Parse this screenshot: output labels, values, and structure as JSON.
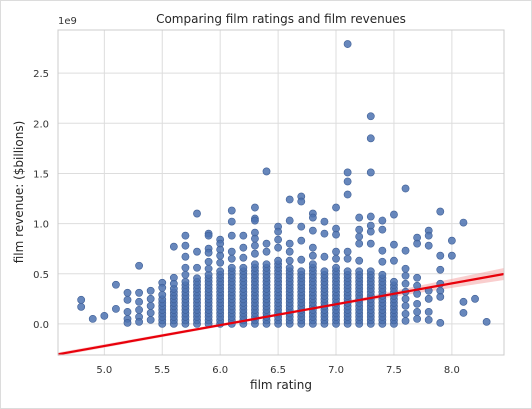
{
  "chart_data": {
    "type": "scatter",
    "title": "Comparing film ratings and film revenues",
    "xlabel": "film rating",
    "ylabel": "film revenue: ($billions)",
    "y_offset_text": "1e9",
    "xlim": [
      4.6,
      8.45
    ],
    "ylim": [
      -0.31,
      2.93
    ],
    "x_ticks": [
      5.0,
      5.5,
      6.0,
      6.5,
      7.0,
      7.5,
      8.0
    ],
    "x_tick_labels": [
      "5.0",
      "5.5",
      "6.0",
      "6.5",
      "7.0",
      "7.5",
      "8.0"
    ],
    "y_ticks": [
      0.0,
      0.5,
      1.0,
      1.5,
      2.0,
      2.5
    ],
    "y_tick_labels": [
      "0.0",
      "0.5",
      "1.0",
      "1.5",
      "2.0",
      "2.5"
    ],
    "grid": true,
    "point_color": "#4c72b0",
    "regression_color": "#e8000b",
    "regression_band_color": "#f4a6a6",
    "regression": {
      "intercept": -1.26,
      "slope": 0.208,
      "x_range": [
        4.6,
        8.45
      ]
    },
    "points": [
      {
        "x": 4.8,
        "y": 0.24
      },
      {
        "x": 4.8,
        "y": 0.17
      },
      {
        "x": 4.9,
        "y": 0.05
      },
      {
        "x": 5.0,
        "y": 0.08
      },
      {
        "x": 5.1,
        "y": 0.39
      },
      {
        "x": 5.1,
        "y": 0.15
      },
      {
        "x": 5.2,
        "y": 0.31
      },
      {
        "x": 5.2,
        "y": 0.24
      },
      {
        "x": 5.2,
        "y": 0.12
      },
      {
        "x": 5.2,
        "y": 0.05
      },
      {
        "x": 5.2,
        "y": 0.01
      },
      {
        "x": 5.3,
        "y": 0.58
      },
      {
        "x": 5.3,
        "y": 0.31
      },
      {
        "x": 5.3,
        "y": 0.22
      },
      {
        "x": 5.3,
        "y": 0.14
      },
      {
        "x": 5.3,
        "y": 0.07
      },
      {
        "x": 5.3,
        "y": 0.02
      },
      {
        "x": 5.4,
        "y": 0.33
      },
      {
        "x": 5.4,
        "y": 0.25
      },
      {
        "x": 5.4,
        "y": 0.18
      },
      {
        "x": 5.4,
        "y": 0.11
      },
      {
        "x": 5.4,
        "y": 0.04
      },
      {
        "x": 5.5,
        "y": 0.41
      },
      {
        "x": 5.5,
        "y": 0.36
      },
      {
        "x": 5.5,
        "y": 0.29
      },
      {
        "x": 5.6,
        "y": 0.77
      },
      {
        "x": 5.6,
        "y": 0.46
      },
      {
        "x": 5.6,
        "y": 0.4
      },
      {
        "x": 5.7,
        "y": 0.88
      },
      {
        "x": 5.7,
        "y": 0.78
      },
      {
        "x": 5.7,
        "y": 0.67
      },
      {
        "x": 5.7,
        "y": 0.56
      },
      {
        "x": 5.7,
        "y": 0.49
      },
      {
        "x": 5.8,
        "y": 1.1
      },
      {
        "x": 5.8,
        "y": 0.72
      },
      {
        "x": 5.8,
        "y": 0.56
      },
      {
        "x": 5.9,
        "y": 0.9
      },
      {
        "x": 5.9,
        "y": 0.88
      },
      {
        "x": 5.9,
        "y": 0.75
      },
      {
        "x": 5.9,
        "y": 0.71
      },
      {
        "x": 5.9,
        "y": 0.62
      },
      {
        "x": 5.9,
        "y": 0.55
      },
      {
        "x": 6.0,
        "y": 0.84
      },
      {
        "x": 6.0,
        "y": 0.8
      },
      {
        "x": 6.0,
        "y": 0.74
      },
      {
        "x": 6.0,
        "y": 0.68
      },
      {
        "x": 6.0,
        "y": 0.61
      },
      {
        "x": 6.1,
        "y": 1.13
      },
      {
        "x": 6.1,
        "y": 1.02
      },
      {
        "x": 6.1,
        "y": 0.88
      },
      {
        "x": 6.1,
        "y": 0.72
      },
      {
        "x": 6.1,
        "y": 0.65
      },
      {
        "x": 6.2,
        "y": 0.88
      },
      {
        "x": 6.2,
        "y": 0.76
      },
      {
        "x": 6.2,
        "y": 0.66
      },
      {
        "x": 6.3,
        "y": 1.16
      },
      {
        "x": 6.3,
        "y": 1.05
      },
      {
        "x": 6.3,
        "y": 1.03
      },
      {
        "x": 6.3,
        "y": 0.91
      },
      {
        "x": 6.3,
        "y": 0.85
      },
      {
        "x": 6.3,
        "y": 0.78
      },
      {
        "x": 6.3,
        "y": 0.7
      },
      {
        "x": 6.4,
        "y": 1.52
      },
      {
        "x": 6.4,
        "y": 0.8
      },
      {
        "x": 6.4,
        "y": 0.72
      },
      {
        "x": 6.5,
        "y": 0.97
      },
      {
        "x": 6.5,
        "y": 0.92
      },
      {
        "x": 6.5,
        "y": 0.84
      },
      {
        "x": 6.5,
        "y": 0.76
      },
      {
        "x": 6.6,
        "y": 1.24
      },
      {
        "x": 6.6,
        "y": 1.03
      },
      {
        "x": 6.6,
        "y": 0.8
      },
      {
        "x": 6.6,
        "y": 0.72
      },
      {
        "x": 6.6,
        "y": 0.63
      },
      {
        "x": 6.7,
        "y": 1.27
      },
      {
        "x": 6.7,
        "y": 1.22
      },
      {
        "x": 6.7,
        "y": 0.97
      },
      {
        "x": 6.7,
        "y": 0.83
      },
      {
        "x": 6.7,
        "y": 0.64
      },
      {
        "x": 6.8,
        "y": 1.1
      },
      {
        "x": 6.8,
        "y": 1.06
      },
      {
        "x": 6.8,
        "y": 0.93
      },
      {
        "x": 6.8,
        "y": 0.76
      },
      {
        "x": 6.8,
        "y": 0.68
      },
      {
        "x": 6.9,
        "y": 1.02
      },
      {
        "x": 6.9,
        "y": 0.9
      },
      {
        "x": 6.9,
        "y": 0.67
      },
      {
        "x": 7.0,
        "y": 1.16
      },
      {
        "x": 7.0,
        "y": 0.95
      },
      {
        "x": 7.0,
        "y": 0.89
      },
      {
        "x": 7.0,
        "y": 0.72
      },
      {
        "x": 7.0,
        "y": 0.65
      },
      {
        "x": 7.1,
        "y": 2.79
      },
      {
        "x": 7.1,
        "y": 1.51
      },
      {
        "x": 7.1,
        "y": 1.42
      },
      {
        "x": 7.1,
        "y": 1.29
      },
      {
        "x": 7.1,
        "y": 0.72
      },
      {
        "x": 7.1,
        "y": 0.65
      },
      {
        "x": 7.2,
        "y": 1.06
      },
      {
        "x": 7.2,
        "y": 0.94
      },
      {
        "x": 7.2,
        "y": 0.87
      },
      {
        "x": 7.2,
        "y": 0.8
      },
      {
        "x": 7.2,
        "y": 0.63
      },
      {
        "x": 7.3,
        "y": 2.07
      },
      {
        "x": 7.3,
        "y": 1.85
      },
      {
        "x": 7.3,
        "y": 1.51
      },
      {
        "x": 7.3,
        "y": 1.07
      },
      {
        "x": 7.3,
        "y": 0.98
      },
      {
        "x": 7.3,
        "y": 0.92
      },
      {
        "x": 7.3,
        "y": 0.8
      },
      {
        "x": 7.4,
        "y": 1.03
      },
      {
        "x": 7.4,
        "y": 0.94
      },
      {
        "x": 7.4,
        "y": 0.73
      },
      {
        "x": 7.4,
        "y": 0.62
      },
      {
        "x": 7.5,
        "y": 1.09
      },
      {
        "x": 7.5,
        "y": 0.79
      },
      {
        "x": 7.5,
        "y": 0.63
      },
      {
        "x": 7.6,
        "y": 1.35
      },
      {
        "x": 7.6,
        "y": 0.73
      },
      {
        "x": 7.6,
        "y": 0.55
      },
      {
        "x": 7.6,
        "y": 0.48
      },
      {
        "x": 7.6,
        "y": 0.4
      },
      {
        "x": 7.6,
        "y": 0.32
      },
      {
        "x": 7.6,
        "y": 0.25
      },
      {
        "x": 7.6,
        "y": 0.18
      },
      {
        "x": 7.6,
        "y": 0.1
      },
      {
        "x": 7.6,
        "y": 0.03
      },
      {
        "x": 7.7,
        "y": 0.86
      },
      {
        "x": 7.7,
        "y": 0.8
      },
      {
        "x": 7.7,
        "y": 0.46
      },
      {
        "x": 7.7,
        "y": 0.38
      },
      {
        "x": 7.7,
        "y": 0.3
      },
      {
        "x": 7.7,
        "y": 0.2
      },
      {
        "x": 7.7,
        "y": 0.12
      },
      {
        "x": 7.7,
        "y": 0.05
      },
      {
        "x": 7.8,
        "y": 0.93
      },
      {
        "x": 7.8,
        "y": 0.88
      },
      {
        "x": 7.8,
        "y": 0.78
      },
      {
        "x": 7.8,
        "y": 0.33
      },
      {
        "x": 7.8,
        "y": 0.25
      },
      {
        "x": 7.8,
        "y": 0.12
      },
      {
        "x": 7.8,
        "y": 0.04
      },
      {
        "x": 7.9,
        "y": 1.12
      },
      {
        "x": 7.9,
        "y": 0.68
      },
      {
        "x": 7.9,
        "y": 0.54
      },
      {
        "x": 7.9,
        "y": 0.4
      },
      {
        "x": 7.9,
        "y": 0.33
      },
      {
        "x": 7.9,
        "y": 0.27
      },
      {
        "x": 7.9,
        "y": 0.01
      },
      {
        "x": 8.0,
        "y": 0.83
      },
      {
        "x": 8.0,
        "y": 0.68
      },
      {
        "x": 8.1,
        "y": 1.01
      },
      {
        "x": 8.1,
        "y": 0.22
      },
      {
        "x": 8.1,
        "y": 0.11
      },
      {
        "x": 8.2,
        "y": 0.25
      },
      {
        "x": 8.3,
        "y": 0.02
      }
    ],
    "dense_columns": [
      {
        "x": 5.5,
        "y_max": 0.25
      },
      {
        "x": 5.6,
        "y_max": 0.35
      },
      {
        "x": 5.7,
        "y_max": 0.42
      },
      {
        "x": 5.8,
        "y_max": 0.48
      },
      {
        "x": 5.9,
        "y_max": 0.5
      },
      {
        "x": 6.0,
        "y_max": 0.55
      },
      {
        "x": 6.1,
        "y_max": 0.58
      },
      {
        "x": 6.2,
        "y_max": 0.58
      },
      {
        "x": 6.3,
        "y_max": 0.6
      },
      {
        "x": 6.4,
        "y_max": 0.62
      },
      {
        "x": 6.5,
        "y_max": 0.65
      },
      {
        "x": 6.6,
        "y_max": 0.56
      },
      {
        "x": 6.7,
        "y_max": 0.55
      },
      {
        "x": 6.8,
        "y_max": 0.6
      },
      {
        "x": 6.9,
        "y_max": 0.55
      },
      {
        "x": 7.0,
        "y_max": 0.56
      },
      {
        "x": 7.1,
        "y_max": 0.55
      },
      {
        "x": 7.2,
        "y_max": 0.55
      },
      {
        "x": 7.3,
        "y_max": 0.55
      },
      {
        "x": 7.4,
        "y_max": 0.5
      },
      {
        "x": 7.5,
        "y_max": 0.45
      }
    ]
  }
}
